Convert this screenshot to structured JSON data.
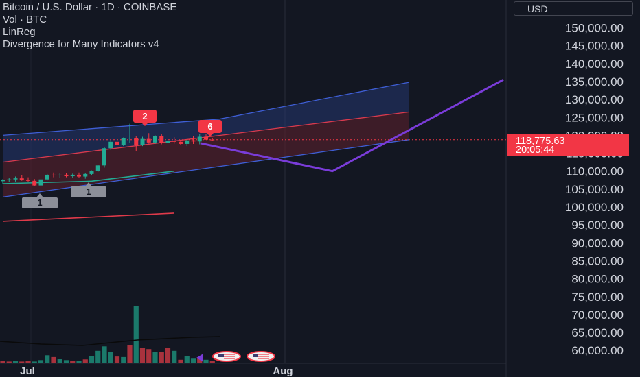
{
  "legend": {
    "symbol": "Bitcoin / U.S. Dollar · 1D · COINBASE",
    "volume": "Vol · BTC",
    "linreg": "LinReg",
    "divergence": "Divergence for Many Indicators v4"
  },
  "currency_button": "USD",
  "last_price": {
    "value": "118,775.63",
    "countdown": "20:05:44",
    "color": "#f23645"
  },
  "price_axis": {
    "ticks": [
      "150,000.00",
      "145,000.00",
      "140,000.00",
      "135,000.00",
      "130,000.00",
      "125,000.00",
      "120,000.00",
      "115,000.00",
      "110,000.00",
      "105,000.00",
      "100,000.00",
      "95,000.00",
      "90,000.00",
      "85,000.00",
      "80,000.00",
      "75,000.00",
      "70,000.00",
      "65,000.00",
      "60,000.00"
    ],
    "values": [
      150000,
      145000,
      140000,
      135000,
      130000,
      125000,
      120000,
      115000,
      110000,
      105000,
      100000,
      95000,
      90000,
      85000,
      80000,
      75000,
      70000,
      65000,
      60000
    ]
  },
  "time_axis": {
    "labels": [
      "Jul",
      "Aug"
    ]
  },
  "markers": {
    "bearish_2": "2",
    "bearish_6": "6",
    "bullish_1a": "1",
    "bullish_1b": "1"
  },
  "colors": {
    "background": "#131722",
    "up": "#22ab94",
    "down": "#f23645",
    "up_volume": "#1b7a6b",
    "down_volume": "#a8323d",
    "channel_blue": "#3f5fd6",
    "channel_red": "#d93a4e",
    "projection": "#7a3cd9",
    "ma_green": "#22ab94",
    "ma_red": "#e03a4a"
  },
  "chart_data": {
    "type": "candlestick",
    "interval": "1D",
    "candles": [
      {
        "o": 107200,
        "h": 107800,
        "l": 106300,
        "c": 107500
      },
      {
        "o": 107500,
        "h": 108200,
        "l": 106900,
        "c": 107700
      },
      {
        "o": 107700,
        "h": 108500,
        "l": 107100,
        "c": 108000
      },
      {
        "o": 108000,
        "h": 108800,
        "l": 107300,
        "c": 107600
      },
      {
        "o": 107600,
        "h": 108300,
        "l": 106900,
        "c": 107300
      },
      {
        "o": 107300,
        "h": 107800,
        "l": 105800,
        "c": 106000
      },
      {
        "o": 106000,
        "h": 108000,
        "l": 105600,
        "c": 107700
      },
      {
        "o": 107700,
        "h": 109200,
        "l": 107400,
        "c": 109000
      },
      {
        "o": 109000,
        "h": 109600,
        "l": 108300,
        "c": 108800
      },
      {
        "o": 108800,
        "h": 109400,
        "l": 108200,
        "c": 109000
      },
      {
        "o": 109000,
        "h": 109500,
        "l": 108300,
        "c": 108600
      },
      {
        "o": 108600,
        "h": 109300,
        "l": 108100,
        "c": 109000
      },
      {
        "o": 109000,
        "h": 109600,
        "l": 108200,
        "c": 108500
      },
      {
        "o": 108500,
        "h": 109400,
        "l": 107900,
        "c": 109200
      },
      {
        "o": 109200,
        "h": 110200,
        "l": 108800,
        "c": 110000
      },
      {
        "o": 110000,
        "h": 111800,
        "l": 109800,
        "c": 111600
      },
      {
        "o": 111600,
        "h": 116800,
        "l": 111000,
        "c": 116400
      },
      {
        "o": 116400,
        "h": 118800,
        "l": 115900,
        "c": 118200
      },
      {
        "o": 118200,
        "h": 118600,
        "l": 116500,
        "c": 117300
      },
      {
        "o": 117300,
        "h": 119400,
        "l": 117000,
        "c": 119200
      },
      {
        "o": 119200,
        "h": 123200,
        "l": 117800,
        "c": 119300
      },
      {
        "o": 119300,
        "h": 119700,
        "l": 115500,
        "c": 117400
      },
      {
        "o": 117400,
        "h": 119600,
        "l": 117000,
        "c": 119000
      },
      {
        "o": 119000,
        "h": 120600,
        "l": 117700,
        "c": 118000
      },
      {
        "o": 118000,
        "h": 120000,
        "l": 117600,
        "c": 119700
      },
      {
        "o": 119700,
        "h": 120300,
        "l": 117500,
        "c": 117900
      },
      {
        "o": 117900,
        "h": 119000,
        "l": 117300,
        "c": 118400
      },
      {
        "o": 118400,
        "h": 119500,
        "l": 117700,
        "c": 118200
      },
      {
        "o": 118200,
        "h": 118800,
        "l": 117200,
        "c": 117600
      },
      {
        "o": 117600,
        "h": 118800,
        "l": 117000,
        "c": 118600
      },
      {
        "o": 118600,
        "h": 119700,
        "l": 117600,
        "c": 118300
      },
      {
        "o": 118300,
        "h": 120400,
        "l": 117500,
        "c": 119600
      },
      {
        "o": 119600,
        "h": 120400,
        "l": 118800,
        "c": 118800
      },
      {
        "o": 118800,
        "h": 119200,
        "l": 118500,
        "c": 118776
      }
    ],
    "volume": {
      "color_direction": [
        "down",
        "down",
        "up",
        "down",
        "down",
        "up",
        "up",
        "up",
        "down",
        "up",
        "up",
        "down",
        "up",
        "down",
        "up",
        "up",
        "up",
        "up",
        "down",
        "up",
        "down",
        "up",
        "down",
        "down",
        "up",
        "down",
        "down",
        "up",
        "down",
        "up",
        "up",
        "down",
        "up",
        "down"
      ],
      "relative": [
        0.12,
        0.1,
        0.12,
        0.1,
        0.12,
        0.1,
        0.18,
        0.45,
        0.35,
        0.23,
        0.18,
        0.15,
        0.12,
        0.22,
        0.4,
        0.7,
        0.95,
        0.63,
        0.38,
        0.35,
        1.0,
        3.2,
        0.85,
        0.8,
        0.65,
        0.65,
        0.85,
        0.7,
        0.2,
        0.4,
        0.26,
        0.28,
        0.2,
        0.15
      ]
    },
    "regression_channel": {
      "blue_upper": [
        [
          0,
          120000
        ],
        [
          34,
          124500
        ],
        [
          64,
          134800
        ]
      ],
      "red_mid": [
        [
          0,
          112500
        ],
        [
          64,
          126500
        ]
      ],
      "blue_lower": [
        [
          0,
          102800
        ],
        [
          64,
          118800
        ]
      ]
    },
    "projection_path": [
      [
        26,
        117800
      ],
      [
        45,
        110000
      ],
      [
        64,
        135500
      ]
    ],
    "moving_averages": [
      {
        "name": "green",
        "points": [
          [
            0,
            106500
          ],
          [
            14,
            107200
          ],
          [
            27,
            110000
          ]
        ]
      },
      {
        "name": "red",
        "points": [
          [
            0,
            96000
          ],
          [
            27,
            98300
          ]
        ]
      }
    ]
  }
}
